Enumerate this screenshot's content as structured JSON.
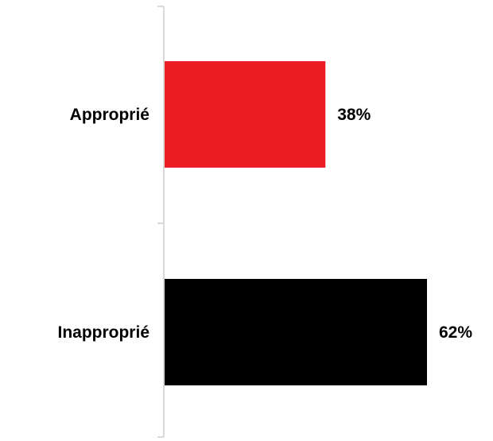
{
  "chart_data": {
    "type": "bar",
    "orientation": "horizontal",
    "categories": [
      "Approprié",
      "Inapproprié"
    ],
    "values": [
      38,
      62
    ],
    "value_labels": [
      "38%",
      "62%"
    ],
    "colors": [
      "#ee1c25",
      "#000000"
    ],
    "xlim": [
      0,
      100
    ],
    "grid": false,
    "legend": "none"
  }
}
